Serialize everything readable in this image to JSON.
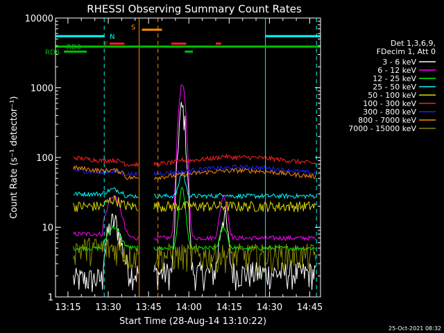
{
  "chart_data": {
    "type": "line",
    "title": "RHESSI Observing Summary Count Rates",
    "xlabel": "Start Time (28-Aug-14 13:10:22)",
    "ylabel": "Count Rate (s⁻¹ detector⁻¹)",
    "yscale": "log",
    "ylim": [
      1,
      10000
    ],
    "xlim_minutes": [
      10.37,
      109.0
    ],
    "x_tick_labels": [
      "13:15",
      "13:30",
      "13:45",
      "14:00",
      "14:15",
      "14:30",
      "14:45"
    ],
    "x_tick_minutes": [
      15,
      30,
      45,
      60,
      75,
      90,
      105
    ],
    "y_tick_labels": [
      "1",
      "10",
      "100",
      "1000",
      "10000"
    ],
    "y_tick_values": [
      1,
      10,
      100,
      1000,
      10000
    ],
    "grid": false,
    "footer_date": "25-Oct-2021 08:32",
    "legend_header": [
      "Det 1,3,6,9,",
      "FDecim 1, Att 0"
    ],
    "series": [
      {
        "name": "3 - 6 keV",
        "color": "#ffffff",
        "pre": 1.8,
        "post": 2.2,
        "flare_peak": 500,
        "flare2_peak": 15,
        "pre_bump": 12
      },
      {
        "name": "6 - 12 keV",
        "color": "#ff00ff",
        "pre": 8,
        "post": 7,
        "flare_peak": 1100,
        "flare2_peak": 28,
        "pre_bump": 28
      },
      {
        "name": "12 - 25 keV",
        "color": "#00ff00",
        "pre": 5,
        "post": 5,
        "flare_peak": 35,
        "flare2_peak": 10,
        "pre_bump": 10
      },
      {
        "name": "25 - 50 keV",
        "color": "#00ffff",
        "pre": 30,
        "post": 28,
        "flare_peak": 60,
        "flare2_peak": 30,
        "pre_bump": 35
      },
      {
        "name": "50 - 100 keV",
        "color": "#dddd00",
        "pre": 20,
        "post": 20,
        "flare_peak": 20,
        "flare2_peak": 20,
        "pre_bump": 25
      },
      {
        "name": "100 - 300 keV",
        "color": "#ff2020",
        "pre": 95,
        "post": 90,
        "flare_peak": 95,
        "flare2_peak": 95,
        "pre_bump": 100
      },
      {
        "name": "300 - 800 keV",
        "color": "#2020ff",
        "pre": 63,
        "post": 65,
        "flare_peak": 63,
        "flare2_peak": 63,
        "pre_bump": 70
      },
      {
        "name": "800 - 7000 keV",
        "color": "#ff8c00",
        "pre": 68,
        "post": 58,
        "flare_peak": 58,
        "flare2_peak": 58,
        "pre_bump": 72
      },
      {
        "name": "7000 - 15000 keV",
        "color": "#8b8b00",
        "pre": 5,
        "post": 4,
        "flare_peak": 4,
        "flare2_peak": 4,
        "pre_bump": 5
      }
    ],
    "annotations": [
      {
        "label": "N",
        "color": "#00ffff"
      },
      {
        "label": "F",
        "color": "#ff2020"
      },
      {
        "label": "S",
        "color": "#ff8c00"
      },
      {
        "label": "RD0",
        "color": "#00c000"
      },
      {
        "label": "RD6",
        "color": "#00c000"
      }
    ],
    "flag_bars": [
      {
        "color": "#00ffff",
        "y": 5500,
        "start_min": 10.37,
        "end_min": 28.5
      },
      {
        "color": "#00ffff",
        "y": 5500,
        "start_min": 88.5,
        "end_min": 109.0
      },
      {
        "color": "#ff2020",
        "y": 4300,
        "start_min": 30.5,
        "end_min": 36.0
      },
      {
        "color": "#ff2020",
        "y": 4300,
        "start_min": 53.5,
        "end_min": 59.0
      },
      {
        "color": "#ff2020",
        "y": 4300,
        "start_min": 70.0,
        "end_min": 72.0
      },
      {
        "color": "#ff8c00",
        "y": 6800,
        "start_min": 42.5,
        "end_min": 50.0
      },
      {
        "color": "#00c000",
        "y": 3900,
        "start_min": 10.37,
        "end_min": 109.0
      },
      {
        "color": "#00c000",
        "y": 3300,
        "start_min": 13.5,
        "end_min": 22.0
      },
      {
        "color": "#00c000",
        "y": 3300,
        "start_min": 58.5,
        "end_min": 61.5
      }
    ],
    "vlines": [
      {
        "min": 28.5,
        "color": "#00ffff",
        "dashed": true
      },
      {
        "min": 88.5,
        "color": "#00ffff",
        "dashed": false
      },
      {
        "min": 107.5,
        "color": "#00ffff",
        "dashed": true
      },
      {
        "min": 41.5,
        "color": "#ff8c00",
        "dashed": false
      },
      {
        "min": 48.5,
        "color": "#ff8c00",
        "dashed": true
      }
    ],
    "gap_minutes": [
      41.5,
      46.0
    ]
  }
}
